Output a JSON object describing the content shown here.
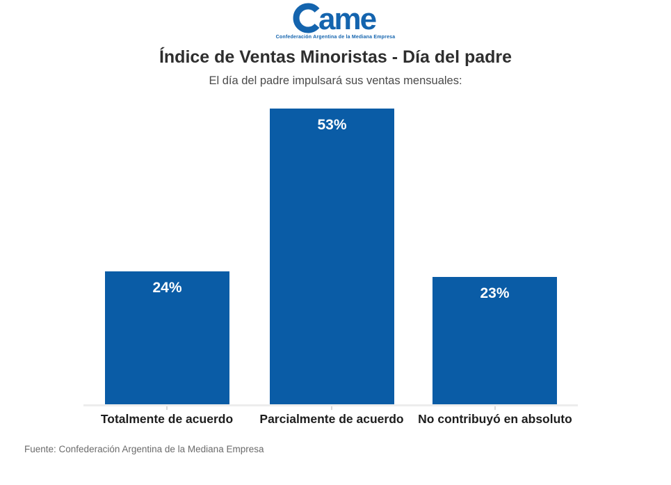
{
  "logo": {
    "wordmark": "ame",
    "tagline": "Confederación Argentina de la Mediana Empresa",
    "color": "#1464ae"
  },
  "header": {
    "title": "Índice de Ventas Minoristas - Día del padre",
    "subtitle": "El día del padre impulsará sus ventas mensuales:"
  },
  "chart_data": {
    "type": "bar",
    "title": "Índice de Ventas Minoristas - Día del padre",
    "subtitle": "El día del padre impulsará sus ventas mensuales:",
    "categories": [
      "Totalmente de acuerdo",
      "Parcialmente de acuerdo",
      "No contribuyó en absoluto"
    ],
    "values": [
      24,
      53,
      23
    ],
    "value_labels": [
      "24%",
      "53%",
      "23%"
    ],
    "unit": "%",
    "xlabel": "",
    "ylabel": "",
    "ylim": [
      0,
      55
    ],
    "grid": false,
    "legend": false,
    "bar_color": "#0a5ca6",
    "value_label_color": "#ffffff",
    "axis_line_color": "#ededed"
  },
  "footer": {
    "source": "Fuente: Confederación Argentina de la Mediana Empresa"
  }
}
